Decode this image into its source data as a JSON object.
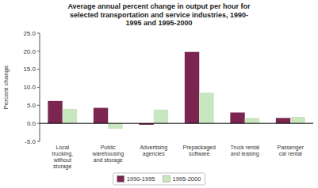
{
  "chart_data": {
    "type": "bar",
    "title": "Average annual percent change in output per hour for\nselected transportation and service industries, 1990-\n1995 and 1995-2000",
    "categories": [
      "Local\ntrucking,\nwithout\nstorage",
      "Public\nwarehousing\nand storage",
      "Advertising\nagencies",
      "Prepackaged\nsoftware",
      "Truck rental\nand leasing",
      "Passenger\ncar rental"
    ],
    "series": [
      {
        "name": "1990-1995",
        "color": "#7B2651",
        "values": [
          6.2,
          4.3,
          -0.4,
          19.8,
          3.0,
          1.5
        ]
      },
      {
        "name": "1995-2000",
        "color": "#C8E6C0",
        "values": [
          4.0,
          -1.5,
          3.8,
          8.5,
          1.5,
          1.8
        ]
      }
    ],
    "ylabel": "Percent change",
    "ylim": [
      -5.0,
      25.0
    ],
    "yticks": [
      {
        "value": -5,
        "label": "-5.0"
      },
      {
        "value": 0,
        "label": "0.0"
      },
      {
        "value": 5,
        "label": "5.0"
      },
      {
        "value": 10,
        "label": "10.0"
      },
      {
        "value": 15,
        "label": "15.0"
      },
      {
        "value": 20,
        "label": "20.0"
      },
      {
        "value": 25,
        "label": "25.0"
      }
    ],
    "grid": false,
    "legend": "bottom"
  }
}
